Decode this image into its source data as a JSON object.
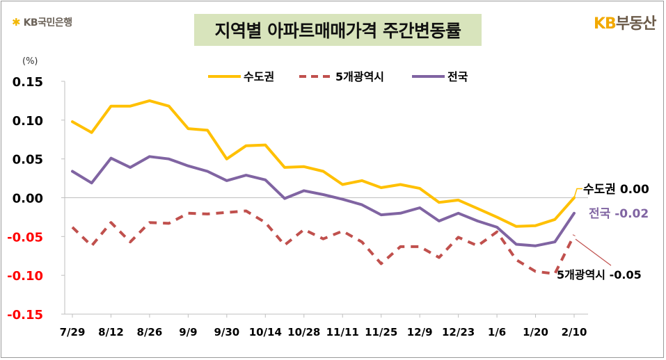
{
  "header": {
    "left_logo_text": "KB국민은행",
    "left_logo_icon": "star-icon",
    "title": "지역별 아파트매매가격 주간변동률",
    "right_logo_brand": "KB",
    "right_logo_text": "부동산"
  },
  "colors": {
    "capital": "#FFC000",
    "metro5": "#C0504D",
    "national": "#8064A2",
    "negative_tick": "#FF0000",
    "title_bg": "#D8E4BC"
  },
  "chart_data": {
    "type": "line",
    "ylabel": "(%)",
    "ylim": [
      -0.15,
      0.15
    ],
    "yticks": [
      {
        "value": 0.15,
        "label": "0.15"
      },
      {
        "value": 0.1,
        "label": "0.10"
      },
      {
        "value": 0.05,
        "label": "0.05"
      },
      {
        "value": 0.0,
        "label": "0.00"
      },
      {
        "value": -0.05,
        "label": "-0.05"
      },
      {
        "value": -0.1,
        "label": "-0.10"
      },
      {
        "value": -0.15,
        "label": "-0.15"
      }
    ],
    "xtick_labels": [
      "7/29",
      "8/12",
      "8/26",
      "9/9",
      "9/30",
      "10/14",
      "10/28",
      "11/11",
      "11/25",
      "12/9",
      "12/23",
      "1/6",
      "1/20",
      "2/10"
    ],
    "legend": [
      "수도권",
      "5개광역시",
      "전국"
    ],
    "legend_position": "top-center",
    "grid": false,
    "series": [
      {
        "name": "수도권",
        "style": "solid",
        "color": "#FFC000",
        "values": [
          0.098,
          0.084,
          0.118,
          0.118,
          0.125,
          0.118,
          0.089,
          0.087,
          0.05,
          0.067,
          0.068,
          0.039,
          0.04,
          0.034,
          0.017,
          0.022,
          0.013,
          0.017,
          0.012,
          -0.006,
          -0.003,
          -0.014,
          -0.025,
          -0.037,
          -0.036,
          -0.028,
          0.0
        ]
      },
      {
        "name": "5개광역시",
        "style": "dashed",
        "color": "#C0504D",
        "values": [
          -0.038,
          -0.062,
          -0.032,
          -0.057,
          -0.032,
          -0.033,
          -0.02,
          -0.021,
          -0.019,
          -0.017,
          -0.032,
          -0.061,
          -0.041,
          -0.053,
          -0.043,
          -0.057,
          -0.085,
          -0.063,
          -0.063,
          -0.077,
          -0.051,
          -0.062,
          -0.044,
          -0.08,
          -0.095,
          -0.098,
          -0.048
        ]
      },
      {
        "name": "전국",
        "style": "solid",
        "color": "#8064A2",
        "values": [
          0.034,
          0.019,
          0.051,
          0.039,
          0.053,
          0.05,
          0.041,
          0.034,
          0.022,
          0.029,
          0.023,
          -0.001,
          0.009,
          0.004,
          -0.002,
          -0.009,
          -0.022,
          -0.02,
          -0.013,
          -0.03,
          -0.02,
          -0.03,
          -0.038,
          -0.06,
          -0.062,
          -0.057,
          -0.02
        ]
      }
    ],
    "annotations": [
      {
        "series": "수도권",
        "label": "수도권",
        "value_label": "0.00"
      },
      {
        "series": "전국",
        "label": "전국",
        "value_label": "-0.02"
      },
      {
        "series": "5개광역시",
        "label": "5개광역시",
        "value_label": "-0.05"
      }
    ]
  }
}
